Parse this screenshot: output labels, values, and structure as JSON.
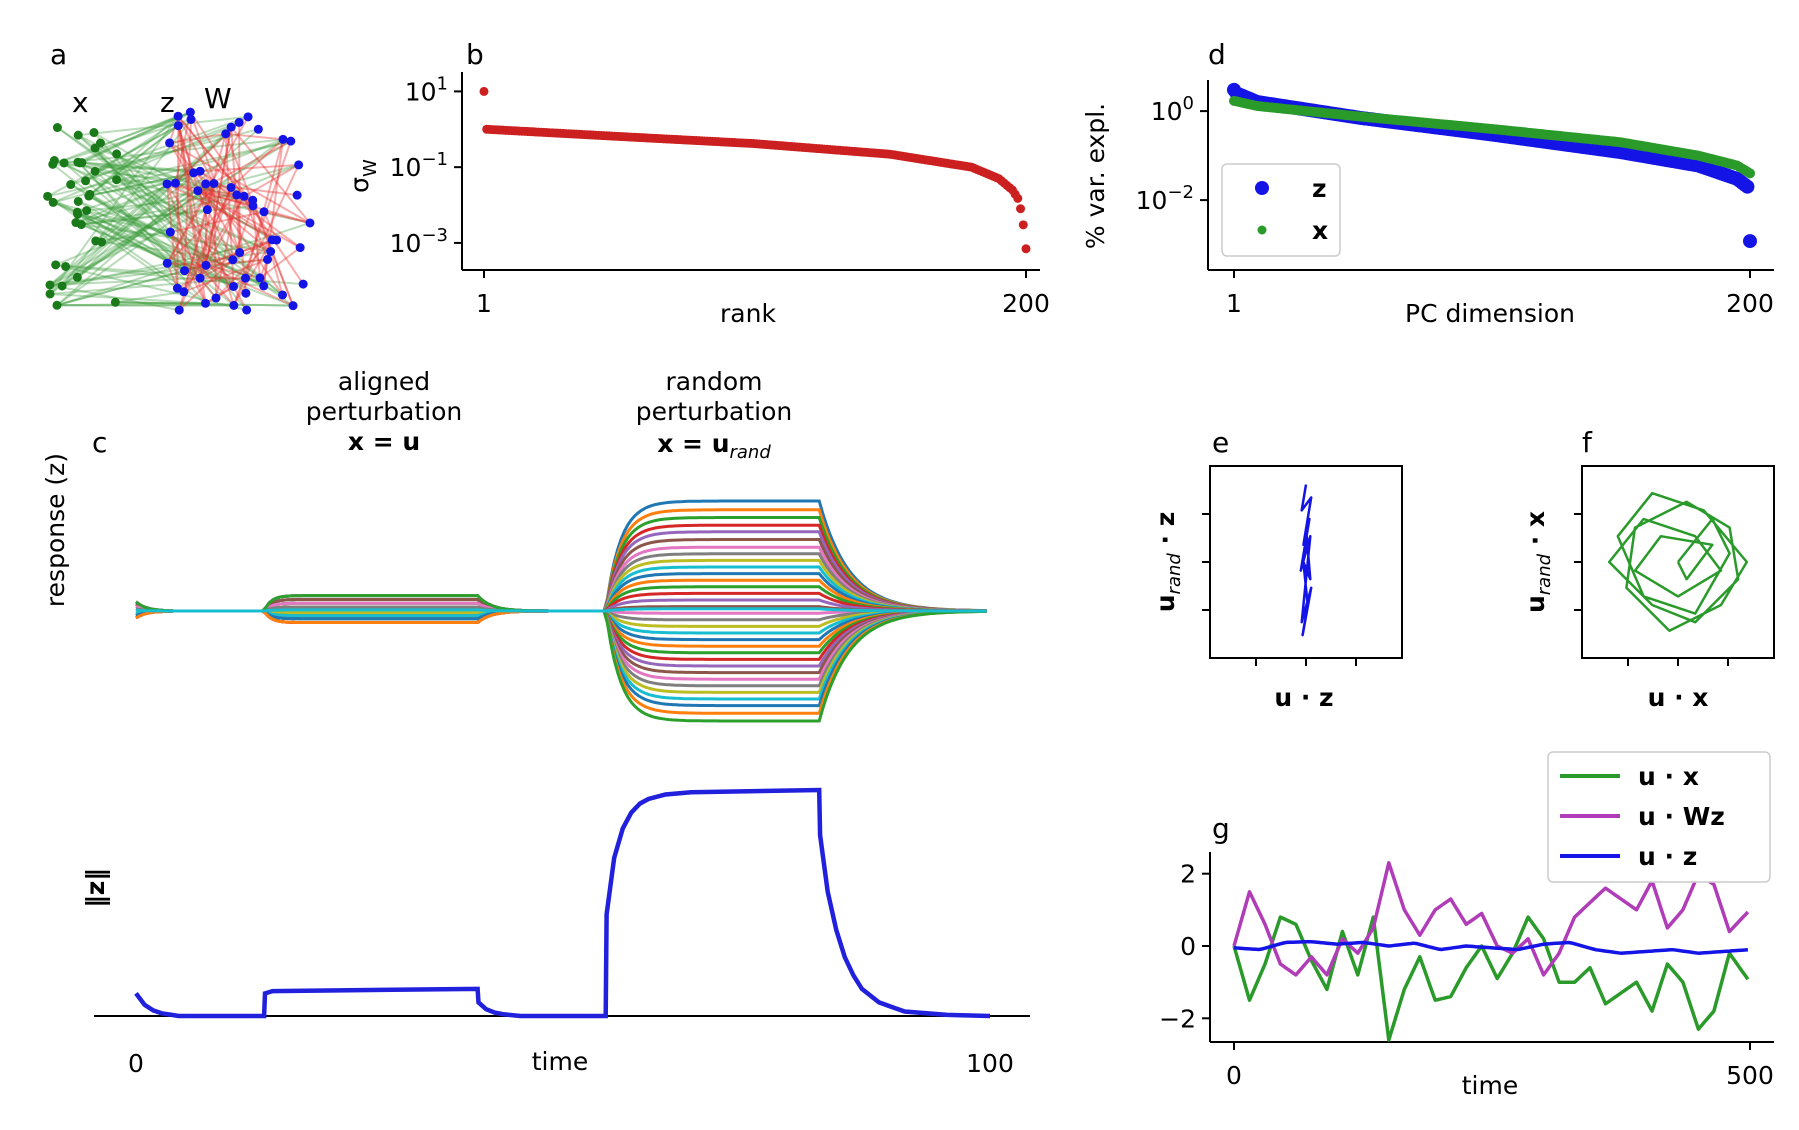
{
  "panel_a": {
    "label": "a",
    "node_labels": {
      "x": "x",
      "z": "z",
      "w": "W"
    },
    "colors": {
      "x": "#1a7a1a",
      "z": "#1414e6",
      "w": "#e01a1a"
    }
  },
  "perturbation_labels": {
    "aligned": {
      "line1": "aligned",
      "line2": "perturbation",
      "eq": "x = u"
    },
    "random": {
      "line1": "random",
      "line2": "perturbation",
      "eq": "x = u",
      "eq_sub": "rand"
    }
  },
  "chart_data": [
    {
      "id": "b",
      "panel": "b",
      "type": "scatter",
      "xlabel": "rank",
      "ylabel": "σ",
      "ylabel_sub": "W",
      "xscale": "linear",
      "yscale": "log",
      "xticks": [
        "1",
        "200"
      ],
      "yticks": [
        "10",
        "10",
        "10"
      ],
      "ytick_exp": [
        "1",
        "−1",
        "−3"
      ],
      "ylim": [
        0.0004,
        20
      ],
      "series": [
        {
          "color": "#cc2020",
          "x": [
            1,
            2,
            20,
            50,
            100,
            150,
            180,
            190,
            195,
            197,
            198,
            199,
            200
          ],
          "y": [
            10,
            1.0,
            0.85,
            0.65,
            0.42,
            0.22,
            0.1,
            0.05,
            0.025,
            0.015,
            0.008,
            0.003,
            0.0007
          ]
        }
      ]
    },
    {
      "id": "d",
      "panel": "d",
      "type": "scatter",
      "xlabel": "PC dimension",
      "ylabel": "% var. expl.",
      "xscale": "linear",
      "yscale": "log",
      "xticks": [
        "1",
        "200"
      ],
      "yticks": [
        "10",
        "10"
      ],
      "ytick_exp": [
        "0",
        "−2"
      ],
      "ylim": [
        0.0005,
        5
      ],
      "legend": {
        "placement": "lower-left",
        "entries": [
          "z",
          "x"
        ]
      },
      "series": [
        {
          "name": "z",
          "color": "#1414e6",
          "x": [
            1,
            2,
            10,
            50,
            100,
            150,
            180,
            195,
            199,
            200
          ],
          "y": [
            3.0,
            2.5,
            1.6,
            0.7,
            0.3,
            0.12,
            0.06,
            0.03,
            0.02,
            0.0012
          ]
        },
        {
          "name": "x",
          "color": "#2a9a2a",
          "x": [
            1,
            10,
            50,
            100,
            150,
            180,
            195,
            200
          ],
          "y": [
            1.7,
            1.3,
            0.75,
            0.4,
            0.2,
            0.1,
            0.06,
            0.04
          ]
        }
      ]
    },
    {
      "id": "c",
      "panel": "c",
      "type": "line",
      "ylabel": "response (z)",
      "ylabel_bold": "z",
      "xlim": [
        0,
        100
      ],
      "intervals": {
        "aligned": [
          15,
          40
        ],
        "random": [
          55,
          80
        ]
      },
      "aligned_values": [
        0.2,
        0.15,
        0.1,
        0.05,
        -0.02,
        -0.06,
        -0.1,
        -0.15
      ],
      "random_values": [
        1.0,
        0.92,
        0.85,
        0.78,
        0.72,
        0.65,
        0.58,
        0.52,
        0.46,
        0.4,
        0.34,
        0.28,
        0.22,
        0.16,
        0.1,
        0.04,
        -0.02,
        -0.08,
        -0.14,
        -0.2,
        -0.26,
        -0.32,
        -0.38,
        -0.44,
        -0.5,
        -0.56,
        -0.62,
        -0.68,
        -0.74,
        -0.8,
        -0.86,
        -0.93,
        -1.0
      ]
    },
    {
      "id": "c2",
      "panel": "c",
      "type": "line",
      "xlabel": "time",
      "ylabel": "‖z‖",
      "xticks": [
        "0",
        "100"
      ],
      "xlim": [
        0,
        100
      ],
      "ylim": [
        0,
        1.1
      ],
      "series": [
        {
          "color": "#2020dd",
          "x": [
            0,
            1,
            2,
            3,
            4,
            5,
            15,
            15.1,
            16,
            40,
            40.1,
            41,
            42,
            43,
            45,
            55,
            55.1,
            56,
            57,
            58,
            59,
            60,
            62,
            65,
            80,
            80.1,
            81,
            82,
            83,
            84,
            85,
            87,
            90,
            95,
            100
          ],
          "y": [
            0.1,
            0.05,
            0.025,
            0.012,
            0.006,
            0.0,
            0.0,
            0.1,
            0.11,
            0.12,
            0.06,
            0.03,
            0.015,
            0.008,
            0.0,
            0.0,
            0.45,
            0.7,
            0.83,
            0.9,
            0.94,
            0.96,
            0.98,
            0.99,
            1.0,
            0.8,
            0.55,
            0.38,
            0.26,
            0.18,
            0.12,
            0.06,
            0.02,
            0.005,
            0.0
          ]
        }
      ]
    },
    {
      "id": "e",
      "panel": "e",
      "type": "line",
      "xlabel": "u · z",
      "ylabel": "u",
      "ylabel_sub": "rand",
      "ylabel_tail": " · z",
      "xlim": [
        -1,
        1
      ],
      "ylim": [
        -1,
        1
      ],
      "series": [
        {
          "color": "#1414e6",
          "x": [
            0.0,
            -0.05,
            0.06,
            -0.03,
            0.04,
            -0.06,
            0.05,
            -0.02,
            0.03,
            -0.05,
            0.06,
            -0.04,
            0.02,
            -0.03,
            0.05,
            0.0
          ],
          "y": [
            0.9,
            0.6,
            0.75,
            0.2,
            0.5,
            -0.1,
            0.3,
            -0.4,
            0.1,
            -0.7,
            -0.3,
            -0.85,
            -0.5,
            0.0,
            -0.2,
            0.4
          ]
        }
      ]
    },
    {
      "id": "f",
      "panel": "f",
      "type": "line",
      "xlabel": "u · x",
      "ylabel": "u",
      "ylabel_sub": "rand",
      "ylabel_tail": " · x",
      "xlim": [
        -1,
        1
      ],
      "ylim": [
        -1,
        1
      ],
      "series": [
        {
          "color": "#2a9a2a",
          "x": [
            0.0,
            0.4,
            0.6,
            0.2,
            -0.4,
            -0.7,
            -0.3,
            0.3,
            0.8,
            0.5,
            -0.1,
            -0.6,
            -0.5,
            0.1,
            0.6,
            0.7,
            0.2,
            -0.3,
            -0.8,
            -0.4,
            0.2,
            0.5,
            0.0,
            -0.5,
            -0.2,
            0.4,
            0.1,
            0.0
          ],
          "y": [
            0.0,
            0.5,
            0.1,
            -0.6,
            -0.4,
            0.3,
            0.8,
            0.6,
            0.0,
            -0.5,
            -0.8,
            -0.3,
            0.4,
            0.7,
            0.4,
            -0.2,
            -0.7,
            -0.5,
            0.0,
            0.5,
            0.3,
            -0.1,
            -0.4,
            -0.1,
            0.3,
            0.2,
            -0.2,
            0.0
          ]
        }
      ]
    },
    {
      "id": "g",
      "panel": "g",
      "type": "line",
      "xlabel": "time",
      "xticks": [
        "0",
        "500"
      ],
      "yticks": [
        "2",
        "0",
        "−2"
      ],
      "xlim": [
        0,
        500
      ],
      "ylim": [
        -2.6,
        2.6
      ],
      "legend": {
        "placement": "top-right",
        "entries": [
          "u · x",
          "u · Wz",
          "u · z"
        ]
      },
      "series": [
        {
          "name": "u · x",
          "color": "#2a9a2a",
          "x": [
            0,
            15,
            30,
            45,
            60,
            75,
            90,
            105,
            120,
            135,
            150,
            165,
            180,
            195,
            210,
            225,
            240,
            255,
            270,
            285,
            300,
            315,
            330,
            345,
            360,
            375,
            390,
            405,
            420,
            435,
            450,
            465,
            480,
            500
          ],
          "y": [
            0.0,
            -1.5,
            -0.5,
            0.8,
            0.6,
            -0.4,
            -1.2,
            0.4,
            -0.8,
            0.8,
            -2.6,
            -1.2,
            -0.3,
            -1.5,
            -1.4,
            -0.6,
            0.0,
            -0.9,
            -0.2,
            0.8,
            0.2,
            -1.0,
            -1.0,
            -0.6,
            -1.6,
            -1.3,
            -1.0,
            -1.8,
            -0.5,
            -1.0,
            -2.3,
            -1.8,
            -0.2,
            -1.0
          ]
        },
        {
          "name": "u · Wz",
          "color": "#b03cb8",
          "x": [
            0,
            15,
            30,
            45,
            60,
            75,
            90,
            105,
            120,
            135,
            150,
            165,
            180,
            195,
            210,
            225,
            240,
            255,
            270,
            285,
            300,
            315,
            330,
            345,
            360,
            375,
            390,
            405,
            420,
            435,
            450,
            465,
            480,
            500
          ],
          "y": [
            0.0,
            1.5,
            0.6,
            -0.5,
            -0.8,
            -0.3,
            -0.8,
            0.2,
            -0.2,
            0.5,
            2.3,
            1.0,
            0.3,
            1.0,
            1.3,
            0.6,
            0.9,
            0.0,
            -0.2,
            0.2,
            -0.8,
            -0.2,
            0.8,
            1.2,
            1.6,
            1.3,
            1.0,
            1.8,
            0.5,
            1.0,
            2.0,
            1.7,
            0.4,
            1.0
          ]
        },
        {
          "name": "u · z",
          "color": "#1414e6",
          "x": [
            0,
            25,
            50,
            75,
            100,
            125,
            150,
            175,
            200,
            225,
            250,
            275,
            300,
            325,
            350,
            375,
            400,
            425,
            450,
            475,
            500
          ],
          "y": [
            -0.05,
            -0.1,
            0.1,
            0.12,
            0.05,
            0.1,
            0.0,
            0.08,
            -0.1,
            0.0,
            -0.05,
            -0.1,
            0.05,
            0.1,
            -0.1,
            -0.2,
            -0.15,
            -0.1,
            -0.2,
            -0.15,
            -0.1
          ]
        }
      ]
    }
  ]
}
